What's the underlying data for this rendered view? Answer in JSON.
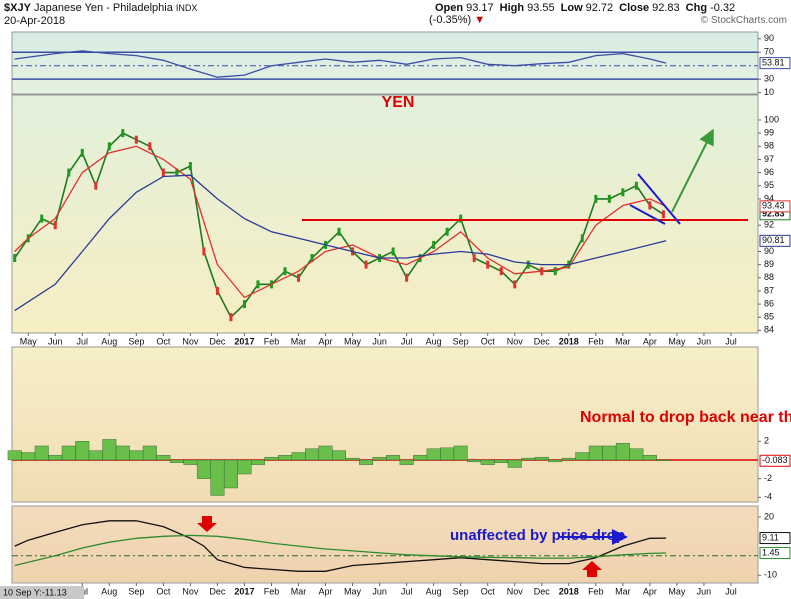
{
  "header": {
    "symbol": "$XJY",
    "name": "Japanese Yen - Philadelphia",
    "exchange": "INDX",
    "date": "20-Apr-2018",
    "quote": [
      {
        "label": "Open",
        "value": 93.17
      },
      {
        "label": "High",
        "value": 93.55
      },
      {
        "label": "Low",
        "value": 92.72
      },
      {
        "label": "Close",
        "value": 92.83
      },
      {
        "label": "Chg",
        "value": "-0.32 (-0.35%)"
      }
    ],
    "credit": "© StockCharts.com"
  },
  "cursor_readout": "10 Sep Y:-11.13",
  "chart_data": [
    {
      "type": "line",
      "xlim": [
        -0.6,
        27.0
      ],
      "ylim": [
        8,
        100
      ],
      "yticks": [
        90,
        70,
        30,
        10
      ],
      "levels": [
        {
          "value": 70,
          "color": "#3a4ea8"
        },
        {
          "value": 50,
          "color": "#3a4ea8",
          "dashed": true
        },
        {
          "value": 30,
          "color": "#3a4ea8"
        }
      ],
      "series": [
        {
          "color": "#3a4ea8",
          "last_value": 53.81,
          "x": [
            -0.5,
            1,
            2,
            3,
            4,
            5,
            6,
            7,
            8,
            9,
            10,
            11,
            12,
            13,
            14,
            15,
            16,
            17,
            18,
            19,
            20,
            21,
            22,
            23,
            23.6
          ],
          "values": [
            60,
            68,
            72,
            68,
            65,
            58,
            45,
            33,
            36,
            50,
            55,
            60,
            55,
            58,
            52,
            60,
            62,
            52,
            50,
            53,
            55,
            65,
            68,
            60,
            53.81
          ]
        }
      ]
    },
    {
      "type": "line",
      "annotation": "YEN",
      "xlim": [
        -0.6,
        27.0
      ],
      "ylim": [
        83.8,
        101.9
      ],
      "yticks": [
        100,
        99,
        98,
        97,
        96,
        95,
        94,
        92,
        90,
        89,
        88,
        87,
        86,
        85,
        84
      ],
      "xticks": [
        {
          "value": 0,
          "label": "May"
        },
        {
          "value": 1,
          "label": "Jun"
        },
        {
          "value": 2,
          "label": "Jul"
        },
        {
          "value": 3,
          "label": "Aug"
        },
        {
          "value": 4,
          "label": "Sep"
        },
        {
          "value": 5,
          "label": "Oct"
        },
        {
          "value": 6,
          "label": "Nov"
        },
        {
          "value": 7,
          "label": "Dec"
        },
        {
          "value": 8,
          "label": "2017"
        },
        {
          "value": 9,
          "label": "Feb"
        },
        {
          "value": 10,
          "label": "Mar"
        },
        {
          "value": 11,
          "label": "Apr"
        },
        {
          "value": 12,
          "label": "May"
        },
        {
          "value": 13,
          "label": "Jun"
        },
        {
          "value": 14,
          "label": "Jul"
        },
        {
          "value": 15,
          "label": "Aug"
        },
        {
          "value": 16,
          "label": "Sep"
        },
        {
          "value": 17,
          "label": "Oct"
        },
        {
          "value": 18,
          "label": "Nov"
        },
        {
          "value": 19,
          "label": "Dec"
        },
        {
          "value": 20,
          "label": "2018"
        },
        {
          "value": 21,
          "label": "Feb"
        },
        {
          "value": 22,
          "label": "Mar"
        },
        {
          "value": 23,
          "label": "Apr"
        },
        {
          "value": 24,
          "label": "May"
        },
        {
          "value": 25,
          "label": "Jun"
        },
        {
          "value": 26,
          "label": "Jul"
        }
      ],
      "x": [
        -0.5,
        0,
        0.5,
        1,
        1.5,
        2,
        2.5,
        3,
        3.5,
        4,
        4.5,
        5,
        5.5,
        6,
        6.5,
        7,
        7.5,
        8,
        8.5,
        9,
        9.5,
        10,
        10.5,
        11,
        11.5,
        12,
        12.5,
        13,
        13.5,
        14,
        14.5,
        15,
        15.5,
        16,
        16.5,
        17,
        17.5,
        18,
        18.5,
        19,
        19.5,
        20,
        20.5,
        21,
        21.5,
        22,
        22.5,
        23,
        23.5
      ],
      "series": [
        {
          "color": "#1e7a1e",
          "last_value": 92.83,
          "values": [
            89.5,
            91,
            92.5,
            92,
            96,
            97.5,
            95,
            98,
            99,
            98.5,
            98,
            96,
            96,
            96.5,
            90,
            87,
            85,
            86,
            87.5,
            87.5,
            88.5,
            88,
            89.5,
            90.5,
            91.5,
            90,
            89,
            89.5,
            90,
            88,
            89.5,
            90.5,
            91.5,
            92.5,
            89.5,
            89,
            88.5,
            87.5,
            89,
            88.5,
            88.5,
            89,
            91,
            94,
            94,
            94.5,
            95,
            93.5,
            92.83
          ]
        },
        {
          "color": "#e03030",
          "last_value": 93.43,
          "x": [
            -0.5,
            0,
            1,
            2,
            3,
            4,
            5,
            6,
            7,
            8,
            9,
            10,
            11,
            12,
            13,
            14,
            15,
            16,
            17,
            18,
            19,
            20,
            21,
            22,
            23,
            23.6
          ],
          "values": [
            90,
            91,
            92.5,
            96,
            97.5,
            98,
            97,
            95.5,
            89,
            86.5,
            87.5,
            88.5,
            90,
            90.5,
            89.5,
            89,
            90,
            91.5,
            89.5,
            88.3,
            88.5,
            88.8,
            92,
            93.5,
            94,
            93.43
          ]
        },
        {
          "color": "#2a3a9a",
          "last_value": 90.81,
          "x": [
            -0.5,
            1,
            2,
            3,
            4,
            5,
            6,
            7,
            8,
            9,
            10,
            11,
            12,
            13,
            14,
            15,
            16,
            17,
            18,
            19,
            20,
            21,
            22,
            23.6
          ],
          "values": [
            85.5,
            87.5,
            90,
            92.5,
            94.5,
            95.7,
            95.8,
            94,
            92.5,
            91.5,
            91,
            90.5,
            90,
            89.5,
            89.5,
            89.8,
            90,
            89.8,
            89.2,
            89,
            89,
            89.5,
            90,
            90.81
          ]
        }
      ]
    },
    {
      "type": "bar",
      "annotation": "Normal to drop back near the zero line",
      "color": "#6abf4b",
      "last_value": -0.083,
      "xlim": [
        -0.6,
        27.0
      ],
      "ylim": [
        -4.5,
        12.1
      ],
      "yticks": [
        2,
        -2,
        -4
      ],
      "levels": [
        {
          "value": 0,
          "color": "#e00000"
        }
      ],
      "x": [
        -0.5,
        0,
        0.5,
        1,
        1.5,
        2,
        2.5,
        3,
        3.5,
        4,
        4.5,
        5,
        5.5,
        6,
        6.5,
        7,
        7.5,
        8,
        8.5,
        9,
        9.5,
        10,
        10.5,
        11,
        11.5,
        12,
        12.5,
        13,
        13.5,
        14,
        14.5,
        15,
        15.5,
        16,
        16.5,
        17,
        17.5,
        18,
        18.5,
        19,
        19.5,
        20,
        20.5,
        21,
        21.5,
        22,
        22.5,
        23,
        23.5
      ],
      "values": [
        1,
        0.8,
        1.5,
        0.5,
        1.5,
        2,
        1,
        2.2,
        1.5,
        1,
        1.5,
        0.5,
        -0.3,
        -0.5,
        -2,
        -3.8,
        -3,
        -1.5,
        -0.5,
        0.3,
        0.5,
        0.8,
        1.2,
        1.5,
        1,
        0.2,
        -0.5,
        0.3,
        0.5,
        -0.5,
        0.5,
        1.2,
        1.3,
        1.5,
        -0.2,
        -0.5,
        -0.3,
        -0.8,
        0.2,
        0.3,
        -0.2,
        0.2,
        0.8,
        1.5,
        1.5,
        1.8,
        1.2,
        0.5,
        -0.083
      ]
    },
    {
      "type": "line",
      "annotation": "unaffected by price drop",
      "xlim": [
        -0.6,
        27.0
      ],
      "ylim": [
        -14,
        25.6
      ],
      "yticks": [
        20,
        -10
      ],
      "levels": [
        {
          "value": 0,
          "color": "#2a6a2a",
          "dashed": true
        }
      ],
      "xticks": [
        {
          "value": 2,
          "label": "Jul"
        },
        {
          "value": 3,
          "label": "Aug"
        },
        {
          "value": 4,
          "label": "Sep"
        },
        {
          "value": 5,
          "label": "Oct"
        },
        {
          "value": 6,
          "label": "Nov"
        },
        {
          "value": 7,
          "label": "Dec"
        },
        {
          "value": 8,
          "label": "2017"
        },
        {
          "value": 9,
          "label": "Feb"
        },
        {
          "value": 10,
          "label": "Mar"
        },
        {
          "value": 11,
          "label": "Apr"
        },
        {
          "value": 12,
          "label": "May"
        },
        {
          "value": 13,
          "label": "Jun"
        },
        {
          "value": 14,
          "label": "Jul"
        },
        {
          "value": 15,
          "label": "Aug"
        },
        {
          "value": 16,
          "label": "Sep"
        },
        {
          "value": 17,
          "label": "Oct"
        },
        {
          "value": 18,
          "label": "Nov"
        },
        {
          "value": 19,
          "label": "Dec"
        },
        {
          "value": 20,
          "label": "2018"
        },
        {
          "value": 21,
          "label": "Feb"
        },
        {
          "value": 22,
          "label": "Mar"
        },
        {
          "value": 23,
          "label": "Apr"
        },
        {
          "value": 24,
          "label": "May"
        },
        {
          "value": 25,
          "label": "Jun"
        },
        {
          "value": 26,
          "label": "Jul"
        }
      ],
      "series": [
        {
          "color": "#111111",
          "last_value": 9.11,
          "x": [
            -0.5,
            0,
            1,
            2,
            3,
            4,
            5,
            6,
            6.5,
            7,
            8,
            9,
            10,
            11,
            12,
            13,
            14,
            15,
            16,
            17,
            18,
            19,
            20,
            21,
            22,
            23,
            23.6
          ],
          "values": [
            5,
            8,
            12,
            16,
            18,
            18,
            15,
            9,
            5,
            -2,
            -6,
            -7,
            -8,
            -8,
            -5,
            -4,
            -3,
            -2,
            -1,
            -2,
            -3,
            -4,
            -4,
            -1,
            5,
            9,
            9.11
          ]
        },
        {
          "color": "#2e8b2e",
          "last_value": 1.45,
          "x": [
            -0.5,
            1,
            2,
            3,
            4,
            5,
            6,
            7,
            8,
            9,
            10,
            11,
            12,
            13,
            14,
            15,
            16,
            17,
            18,
            19,
            20,
            21,
            22,
            23,
            23.6
          ],
          "values": [
            -5,
            0,
            4,
            7,
            9,
            10,
            10.5,
            10,
            8.5,
            6.5,
            5,
            3.5,
            2.5,
            1.5,
            0.5,
            0,
            -0.5,
            -0.8,
            -1,
            -1.2,
            -1.2,
            -0.5,
            0.5,
            1.2,
            1.45
          ]
        }
      ]
    }
  ]
}
